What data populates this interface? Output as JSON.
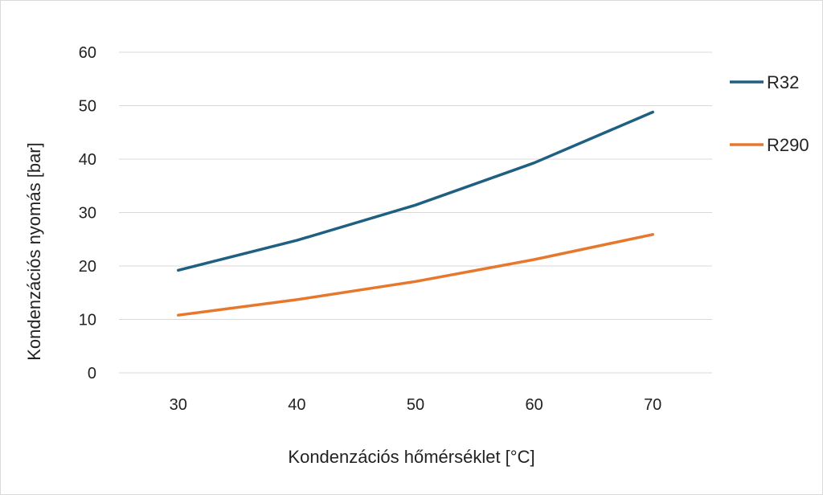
{
  "chart_data": {
    "type": "line",
    "x": [
      30,
      40,
      50,
      60,
      70
    ],
    "series": [
      {
        "name": "R32",
        "color": "#1f6082",
        "values": [
          19.2,
          24.8,
          31.4,
          39.3,
          48.8
        ]
      },
      {
        "name": "R290",
        "color": "#e8772e",
        "values": [
          10.8,
          13.7,
          17.1,
          21.2,
          25.9
        ]
      }
    ],
    "xlabel": "Kondenzációs hőmérséklet [°C]",
    "ylabel": "Kondenzációs nyomás [bar]",
    "xticks": [
      "30",
      "40",
      "50",
      "60",
      "70"
    ],
    "yticks": [
      "0",
      "10",
      "20",
      "30",
      "40",
      "50",
      "60"
    ],
    "ylim": [
      0,
      60
    ],
    "grid": "horizontal",
    "legend": "right"
  }
}
